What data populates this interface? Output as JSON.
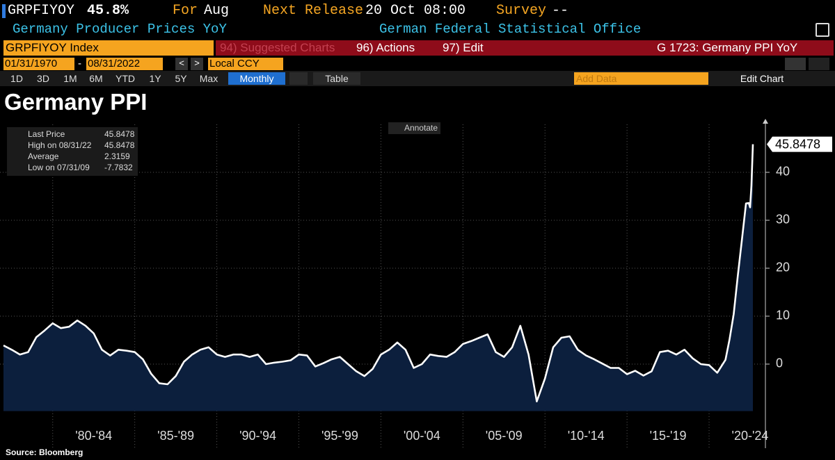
{
  "header": {
    "ticker": "GRPFIYOY",
    "last": "45.8%",
    "for_label": "For",
    "for_value": "Aug",
    "next_release_label": "Next Release",
    "next_release_value": "20 Oct 08:00",
    "survey_label": "Survey",
    "survey_value": "--",
    "name": "Germany Producer Prices YoY",
    "source_org": "German Federal Statistical Office"
  },
  "toolbar": {
    "security": "GRPFIYOY Index",
    "suggested": "94) Suggested Charts",
    "actions": "96) Actions",
    "edit": "97) Edit",
    "chart_id": "G 1723: Germany PPI YoY",
    "start_date": "01/31/1970",
    "end_date": "08/31/2022",
    "currency": "Local CCY",
    "ranges": [
      "1D",
      "3D",
      "1M",
      "6M",
      "YTD",
      "1Y",
      "5Y",
      "Max"
    ],
    "frequency": "Monthly",
    "table": "Table",
    "add_data": "Add Data",
    "edit_chart": "Edit Chart"
  },
  "chart_data": {
    "type": "line",
    "title": "Germany PPI",
    "annotate": "Annotate",
    "source": "Source: Bloomberg",
    "line_color": "#ffffff",
    "fill_color": "#0c1f3d",
    "legend": [
      {
        "label": "Last Price",
        "value": "45.8478"
      },
      {
        "label": "High on 08/31/22",
        "value": "45.8478"
      },
      {
        "label": "Average",
        "value": "2.3159"
      },
      {
        "label": "Low on 07/31/09",
        "value": "-7.7832"
      }
    ],
    "x": [
      1977,
      1977.5,
      1978,
      1978.5,
      1979,
      1979.5,
      1980,
      1980.5,
      1981,
      1981.5,
      1982,
      1982.5,
      1983,
      1983.5,
      1984,
      1984.5,
      1985,
      1985.5,
      1986,
      1986.5,
      1987,
      1987.5,
      1988,
      1988.5,
      1989,
      1989.5,
      1990,
      1990.5,
      1991,
      1991.5,
      1992,
      1992.5,
      1993,
      1993.5,
      1994,
      1994.5,
      1995,
      1995.5,
      1996,
      1996.5,
      1997,
      1997.5,
      1998,
      1998.5,
      1999,
      1999.5,
      2000,
      2000.5,
      2001,
      2001.5,
      2002,
      2002.5,
      2003,
      2003.5,
      2004,
      2004.5,
      2005,
      2005.5,
      2006,
      2006.5,
      2007,
      2007.5,
      2008,
      2008.5,
      2009,
      2009.5,
      2010,
      2010.5,
      2011,
      2011.5,
      2012,
      2012.5,
      2013,
      2013.5,
      2014,
      2014.5,
      2015,
      2015.5,
      2016,
      2016.5,
      2017,
      2017.5,
      2018,
      2018.5,
      2019,
      2019.5,
      2020,
      2020.5,
      2021,
      2021.25,
      2021.5,
      2021.75,
      2022,
      2022.25,
      2022.42,
      2022.5,
      2022.58,
      2022.67
    ],
    "values": [
      3.9,
      3,
      2,
      2.5,
      5.6,
      7,
      8.5,
      7.5,
      7.8,
      9.1,
      8,
      6.4,
      3,
      1.8,
      3,
      2.8,
      2.5,
      1,
      -2,
      -4,
      -4.2,
      -2.5,
      0.5,
      2,
      3,
      3.5,
      2,
      1.5,
      2,
      2,
      1.5,
      2,
      0,
      0.3,
      0.5,
      0.8,
      2,
      1.8,
      -0.5,
      0.2,
      1,
      1.5,
      0,
      -1.5,
      -2.5,
      -1,
      2,
      3,
      4.5,
      3,
      -0.8,
      0,
      2,
      1.7,
      1.5,
      2.5,
      4.2,
      4.8,
      5.5,
      6.2,
      2.5,
      1.5,
      3.5,
      8,
      2,
      -7.7832,
      -3,
      3.5,
      5.5,
      5.8,
      3,
      1.8,
      1,
      0.1,
      -0.8,
      -0.8,
      -2.1,
      -1.4,
      -2.4,
      -1.5,
      2.5,
      2.8,
      2,
      3,
      1.2,
      0,
      -0.2,
      -1.8,
      0.9,
      5.2,
      10.4,
      18.4,
      25.9,
      33.5,
      33.6,
      32.7,
      37.2,
      45.8478
    ],
    "xlim": [
      1977,
      2022.67
    ],
    "xticks": [
      {
        "value": 1982.5,
        "label": "'80-'84"
      },
      {
        "value": 1987.5,
        "label": "'85-'89"
      },
      {
        "value": 1992.5,
        "label": "'90-'94"
      },
      {
        "value": 1997.5,
        "label": "'95-'99"
      },
      {
        "value": 2002.5,
        "label": "'00-'04"
      },
      {
        "value": 2007.5,
        "label": "'05-'09"
      },
      {
        "value": 2012.5,
        "label": "'10-'14"
      },
      {
        "value": 2017.5,
        "label": "'15-'19"
      },
      {
        "value": 2022.5,
        "label": "'20-'24"
      }
    ],
    "ylim": [
      -9.8,
      50
    ],
    "yticks": [
      0,
      10,
      20,
      30,
      40
    ],
    "grid": true
  }
}
